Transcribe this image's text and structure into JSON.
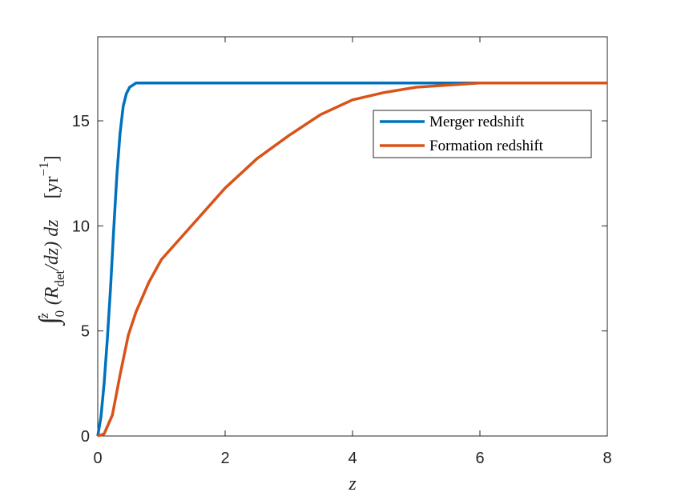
{
  "chart_data": {
    "type": "line",
    "x_label": "z",
    "y_label": [
      {
        "text": "∫",
        "style": "large"
      },
      {
        "text": "0",
        "style": "sub"
      },
      {
        "text": "z",
        "style": "sup"
      },
      {
        "text": "(R",
        "style": "normal"
      },
      {
        "text": "det",
        "style": "sub"
      },
      {
        "text": "/dz) dz",
        "style": "normal"
      },
      {
        "text": "[yr",
        "style": "upright"
      },
      {
        "text": "−1",
        "style": "sup"
      },
      {
        "text": "]",
        "style": "upright"
      }
    ],
    "xlim": [
      0,
      8
    ],
    "ylim": [
      0,
      19
    ],
    "xticks": [
      0,
      2,
      4,
      6,
      8
    ],
    "yticks": [
      0,
      5,
      10,
      15
    ],
    "grid": false,
    "legend": "upper right",
    "series": [
      {
        "name": "Merger redshift",
        "color": "#0072bd",
        "x": [
          0,
          0.05,
          0.1,
          0.15,
          0.2,
          0.25,
          0.3,
          0.35,
          0.4,
          0.45,
          0.5,
          0.6,
          0.8,
          1,
          2,
          3,
          4,
          5,
          6,
          7,
          8
        ],
        "values": [
          0,
          0.9,
          2.5,
          4.6,
          7,
          9.8,
          12.4,
          14.4,
          15.7,
          16.3,
          16.6,
          16.8,
          16.8,
          16.8,
          16.8,
          16.8,
          16.8,
          16.8,
          16.8,
          16.8,
          16.8
        ]
      },
      {
        "name": "Formation redshift",
        "color": "#d95319",
        "x": [
          0,
          0.1,
          0.23,
          0.35,
          0.48,
          0.6,
          0.8,
          1,
          1.5,
          2,
          2.5,
          3,
          3.5,
          4,
          4.5,
          5,
          6,
          7,
          8
        ],
        "values": [
          0,
          0.1,
          1.0,
          2.9,
          4.8,
          5.9,
          7.3,
          8.4,
          10.1,
          11.8,
          13.2,
          14.3,
          15.3,
          16.0,
          16.35,
          16.6,
          16.8,
          16.8,
          16.8
        ]
      }
    ]
  }
}
